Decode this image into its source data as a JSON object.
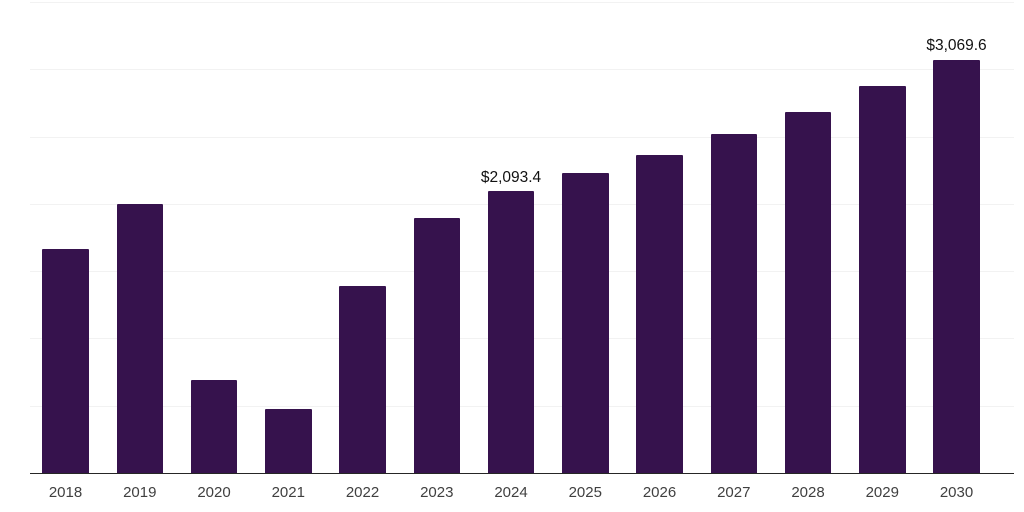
{
  "chart_data": {
    "type": "bar",
    "categories": [
      "2018",
      "2019",
      "2020",
      "2021",
      "2022",
      "2023",
      "2024",
      "2025",
      "2026",
      "2027",
      "2028",
      "2029",
      "2030"
    ],
    "values": [
      1661.9,
      1997.1,
      693.0,
      477.0,
      1389.8,
      1892.8,
      2093.4,
      2228.2,
      2362.3,
      2518.8,
      2686.4,
      2872.7,
      3069.6
    ],
    "data_labels": [
      {
        "category": "2024",
        "text": "$2,093.4"
      },
      {
        "category": "2030",
        "text": "$3,069.6"
      }
    ],
    "ylim": [
      0,
      3500
    ],
    "grid_step": 500,
    "grid": "horizontal-only",
    "legend": "none",
    "y_axis_labels_visible": false,
    "colors": {
      "bar": "#36124d",
      "gridline": "#f2f2f2",
      "axis": "#262626",
      "tick_label": "#404040",
      "data_label": "#111111",
      "background": "#ffffff"
    }
  }
}
